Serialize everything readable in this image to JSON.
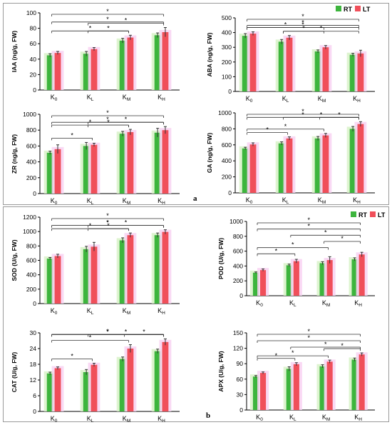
{
  "colors": {
    "RT": "#3db53d",
    "LT": "#f04f5a",
    "glow_RT": "#d8f2c8",
    "glow_LT": "#f8d2f2",
    "frame": "#9a9a9a",
    "axis": "#000000"
  },
  "legend_rt": "RT",
  "legend_lt": "LT",
  "panel_a_label": "a",
  "panel_b_label": "b",
  "categories": [
    "K0",
    "KL",
    "KM",
    "KH"
  ],
  "chart_data": [
    {
      "type": "bar",
      "ylabel": "IAA (ng/g, FW)",
      "ylim": [
        0,
        100
      ],
      "yticks": [
        0,
        20,
        40,
        60,
        80,
        100
      ],
      "categories": [
        "K0",
        "KL",
        "KM",
        "KH"
      ],
      "series": [
        {
          "name": "RT",
          "values": [
            45,
            47,
            64,
            71
          ],
          "errors": [
            2,
            3,
            3,
            3
          ]
        },
        {
          "name": "LT",
          "values": [
            48,
            53,
            68,
            75
          ],
          "errors": [
            2,
            2,
            3,
            6
          ]
        }
      ],
      "significance": [
        {
          "from": "K0",
          "to": "KH",
          "label": "*"
        },
        {
          "from": "K0",
          "to": "KH",
          "label": "*"
        },
        {
          "from": "KL",
          "to": "KH",
          "label": "*"
        },
        {
          "from": "KL",
          "to": "KM",
          "label": "*"
        },
        {
          "from": "K0",
          "to": "KM",
          "label": "*"
        }
      ]
    },
    {
      "type": "bar",
      "ylabel": "ABA (ng/g, FW)",
      "ylim": [
        0,
        500
      ],
      "yticks": [
        0,
        100,
        200,
        300,
        400,
        500
      ],
      "categories": [
        "K0",
        "KL",
        "KM",
        "KH"
      ],
      "series": [
        {
          "name": "RT",
          "values": [
            378,
            338,
            272,
            249
          ],
          "errors": [
            15,
            15,
            10,
            10
          ]
        },
        {
          "name": "LT",
          "values": [
            393,
            365,
            300,
            258
          ],
          "errors": [
            12,
            15,
            12,
            22
          ]
        }
      ],
      "significance": [
        {
          "from": "K0",
          "to": "KH",
          "label": "*"
        },
        {
          "from": "K0",
          "to": "KH",
          "label": "*"
        },
        {
          "from": "K0",
          "to": "KH",
          "label": "*"
        },
        {
          "from": "K0",
          "to": "KM",
          "label": "*"
        },
        {
          "from": "KL",
          "to": "KM",
          "label": "*"
        },
        {
          "from": "KL",
          "to": "KH",
          "label": "*"
        }
      ]
    },
    {
      "type": "bar",
      "ylabel": "ZR (ng/g, FW)",
      "ylim": [
        0,
        1000
      ],
      "yticks": [
        0,
        200,
        400,
        600,
        800,
        1000
      ],
      "categories": [
        "K0",
        "KL",
        "KM",
        "KH"
      ],
      "series": [
        {
          "name": "RT",
          "values": [
            515,
            600,
            755,
            768
          ],
          "errors": [
            20,
            45,
            30,
            55
          ]
        },
        {
          "name": "LT",
          "values": [
            560,
            615,
            775,
            800
          ],
          "errors": [
            55,
            20,
            35,
            45
          ]
        }
      ],
      "significance": [
        {
          "from": "K0",
          "to": "KH",
          "label": "*"
        },
        {
          "from": "K0",
          "to": "KH",
          "label": "*"
        },
        {
          "from": "KL",
          "to": "KH",
          "label": "*"
        },
        {
          "from": "KL",
          "to": "KM",
          "label": "*"
        },
        {
          "from": "K0",
          "to": "KM",
          "label": "*"
        },
        {
          "from": "K0",
          "to": "KL",
          "label": "*"
        }
      ]
    },
    {
      "type": "bar",
      "ylabel": "GA (ng/g, FW)",
      "ylim": [
        0,
        1000
      ],
      "yticks": [
        0,
        200,
        400,
        600,
        800,
        1000
      ],
      "categories": [
        "K0",
        "KL",
        "KM",
        "KH"
      ],
      "series": [
        {
          "name": "RT",
          "values": [
            555,
            618,
            680,
            800
          ],
          "errors": [
            15,
            20,
            25,
            30
          ]
        },
        {
          "name": "LT",
          "values": [
            605,
            680,
            718,
            860
          ],
          "errors": [
            20,
            20,
            25,
            30
          ]
        }
      ],
      "significance": [
        {
          "from": "K0",
          "to": "KH",
          "label": "*"
        },
        {
          "from": "K0",
          "to": "KH",
          "label": "*"
        },
        {
          "from": "KL",
          "to": "KH",
          "label": "*"
        },
        {
          "from": "KM",
          "to": "KH",
          "label": "*"
        },
        {
          "from": "K0",
          "to": "KM",
          "label": "*"
        },
        {
          "from": "K0",
          "to": "KL",
          "label": "*"
        }
      ]
    },
    {
      "type": "bar",
      "ylabel": "SOD (U/g, FW)",
      "ylim": [
        0,
        1200
      ],
      "yticks": [
        0,
        200,
        400,
        600,
        800,
        1000,
        1200
      ],
      "categories": [
        "K0",
        "KL",
        "KM",
        "KH"
      ],
      "series": [
        {
          "name": "RT",
          "values": [
            625,
            755,
            878,
            950
          ],
          "errors": [
            15,
            40,
            35,
            30
          ]
        },
        {
          "name": "LT",
          "values": [
            660,
            790,
            950,
            995
          ],
          "errors": [
            25,
            60,
            30,
            30
          ]
        }
      ],
      "significance": [
        {
          "from": "K0",
          "to": "KH",
          "label": "*"
        },
        {
          "from": "K0",
          "to": "KH",
          "label": "*"
        },
        {
          "from": "K0",
          "to": "KH",
          "label": "*"
        },
        {
          "from": "KL",
          "to": "KH",
          "label": "*"
        },
        {
          "from": "KL",
          "to": "KM",
          "label": "*"
        },
        {
          "from": "K0",
          "to": "KM",
          "label": "*"
        }
      ]
    },
    {
      "type": "bar",
      "ylabel": "POD (U/g, FW)",
      "ylim": [
        0,
        1000
      ],
      "yticks": [
        0,
        200,
        400,
        600,
        800,
        1000
      ],
      "categories": [
        "K0",
        "KL",
        "KM",
        "KH"
      ],
      "series": [
        {
          "name": "RT",
          "values": [
            310,
            410,
            438,
            490
          ],
          "errors": [
            10,
            15,
            20,
            20
          ]
        },
        {
          "name": "LT",
          "values": [
            345,
            465,
            480,
            555
          ],
          "errors": [
            15,
            25,
            45,
            30
          ]
        }
      ],
      "significance": [
        {
          "from": "K0",
          "to": "KH",
          "label": "*"
        },
        {
          "from": "K0",
          "to": "KH",
          "label": "*"
        },
        {
          "from": "KL",
          "to": "KH",
          "label": "*"
        },
        {
          "from": "KM",
          "to": "KH",
          "label": "*"
        },
        {
          "from": "K0",
          "to": "KM",
          "label": "*"
        },
        {
          "from": "K0",
          "to": "KL",
          "label": "*"
        }
      ]
    },
    {
      "type": "bar",
      "ylabel": "CAT (U/g, FW)",
      "ylim": [
        0,
        30
      ],
      "yticks": [
        0,
        6,
        12,
        18,
        24,
        30
      ],
      "categories": [
        "K0",
        "KL",
        "KM",
        "KH"
      ],
      "series": [
        {
          "name": "RT",
          "values": [
            14.5,
            15,
            20,
            23
          ],
          "errors": [
            0.5,
            1,
            0.8,
            0.8
          ]
        },
        {
          "name": "LT",
          "values": [
            16.5,
            17.8,
            24,
            26.5
          ],
          "errors": [
            0.5,
            0.6,
            1.5,
            1.2
          ]
        }
      ],
      "significance": [
        {
          "from": "K0",
          "to": "KH",
          "label": "*"
        },
        {
          "from": "K0",
          "to": "KH",
          "label": "*"
        },
        {
          "from": "KL",
          "to": "KH",
          "label": "*"
        },
        {
          "from": "KM",
          "to": "KH",
          "label": "*"
        },
        {
          "from": "K0",
          "to": "KM",
          "label": "*"
        },
        {
          "from": "K0",
          "to": "KL",
          "label": "*"
        }
      ]
    },
    {
      "type": "bar",
      "ylabel": "APX (U/g, FW)",
      "ylim": [
        0,
        150
      ],
      "yticks": [
        0,
        30,
        60,
        90,
        120,
        150
      ],
      "categories": [
        "K0",
        "KL",
        "KM",
        "KH"
      ],
      "series": [
        {
          "name": "RT",
          "values": [
            65,
            80,
            85,
            98
          ],
          "errors": [
            2,
            4,
            3,
            3
          ]
        },
        {
          "name": "LT",
          "values": [
            72,
            89,
            94,
            108
          ],
          "errors": [
            2,
            3,
            3,
            3
          ]
        }
      ],
      "significance": [
        {
          "from": "K0",
          "to": "KH",
          "label": "*"
        },
        {
          "from": "K0",
          "to": "KH",
          "label": "*"
        },
        {
          "from": "KL",
          "to": "KH",
          "label": "*"
        },
        {
          "from": "KM",
          "to": "KH",
          "label": "*"
        },
        {
          "from": "K0",
          "to": "KM",
          "label": "*"
        },
        {
          "from": "K0",
          "to": "KL",
          "label": "*"
        }
      ]
    }
  ]
}
